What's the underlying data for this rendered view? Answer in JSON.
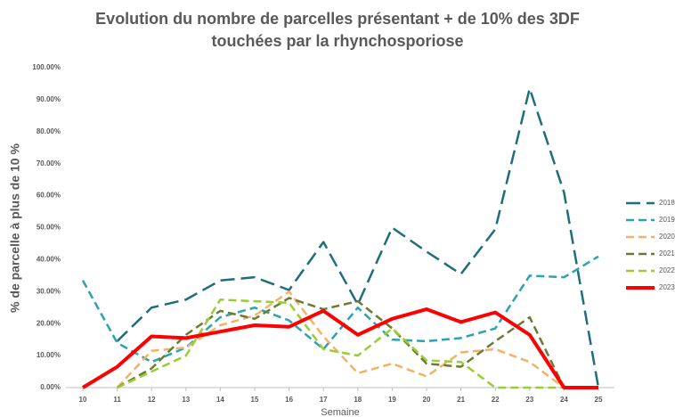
{
  "chart_data": {
    "type": "line",
    "title": [
      "Evolution du nombre de parcelles présentant + de 10% des 3DF",
      "touchées par la rhynchosporiose"
    ],
    "x_label": "Semaine",
    "y_label": "% de parcelle à plus de 10 %",
    "categories": [
      "10",
      "11",
      "12",
      "13",
      "14",
      "15",
      "16",
      "17",
      "18",
      "19",
      "20",
      "21",
      "22",
      "23",
      "24",
      "25"
    ],
    "ylim": [
      0,
      100
    ],
    "yticks": [
      {
        "value": 0,
        "label": "0.00%"
      },
      {
        "value": 10,
        "label": "10.00%"
      },
      {
        "value": 20,
        "label": "20.00%"
      },
      {
        "value": 30,
        "label": "30.00%"
      },
      {
        "value": 40,
        "label": "40.00%"
      },
      {
        "value": 50,
        "label": "50.00%"
      },
      {
        "value": 60,
        "label": "60.00%"
      },
      {
        "value": 70,
        "label": "70.00%"
      },
      {
        "value": 80,
        "label": "80.00%"
      },
      {
        "value": 90,
        "label": "90.00%"
      },
      {
        "value": 100,
        "label": "100.00%"
      }
    ],
    "legend": "right",
    "series": [
      {
        "name": "2018",
        "color": "#1f6e7c",
        "dash": "long-dash",
        "values": [
          null,
          14.5,
          25,
          27.5,
          33.5,
          34.5,
          30.5,
          45.5,
          26,
          50,
          42.5,
          35.5,
          49.5,
          93.5,
          61,
          0
        ]
      },
      {
        "name": "2019",
        "color": "#2ba3b3",
        "dash": "dash",
        "values": [
          33.5,
          14,
          8,
          12.5,
          22,
          25,
          21,
          12,
          25,
          15,
          14.5,
          15.5,
          18.5,
          35,
          34.5,
          41
        ]
      },
      {
        "name": "2020",
        "color": "#f5b266",
        "dash": "dash",
        "values": [
          null,
          0,
          11.5,
          12.5,
          19.5,
          22.5,
          30,
          16,
          4.5,
          7.5,
          3.5,
          11,
          12,
          8,
          0,
          null
        ]
      },
      {
        "name": "2021",
        "color": "#6b7a36",
        "dash": "dash",
        "values": [
          null,
          0,
          6,
          16.5,
          24,
          21.5,
          28,
          24.5,
          27,
          18.5,
          7.5,
          6.5,
          14.5,
          22,
          0,
          null
        ]
      },
      {
        "name": "2022",
        "color": "#9acd32",
        "dash": "dash",
        "values": [
          null,
          0,
          5,
          10,
          27.5,
          27,
          26.5,
          12,
          10,
          18.5,
          8.5,
          8,
          0,
          0,
          0,
          null
        ]
      },
      {
        "name": "2023",
        "color": "#ff0000",
        "dash": "solid",
        "values": [
          0,
          6.5,
          16,
          15.5,
          17.5,
          19.5,
          19,
          24,
          16.5,
          21.5,
          24.5,
          20.5,
          23.5,
          16.5,
          0,
          0
        ]
      }
    ]
  }
}
